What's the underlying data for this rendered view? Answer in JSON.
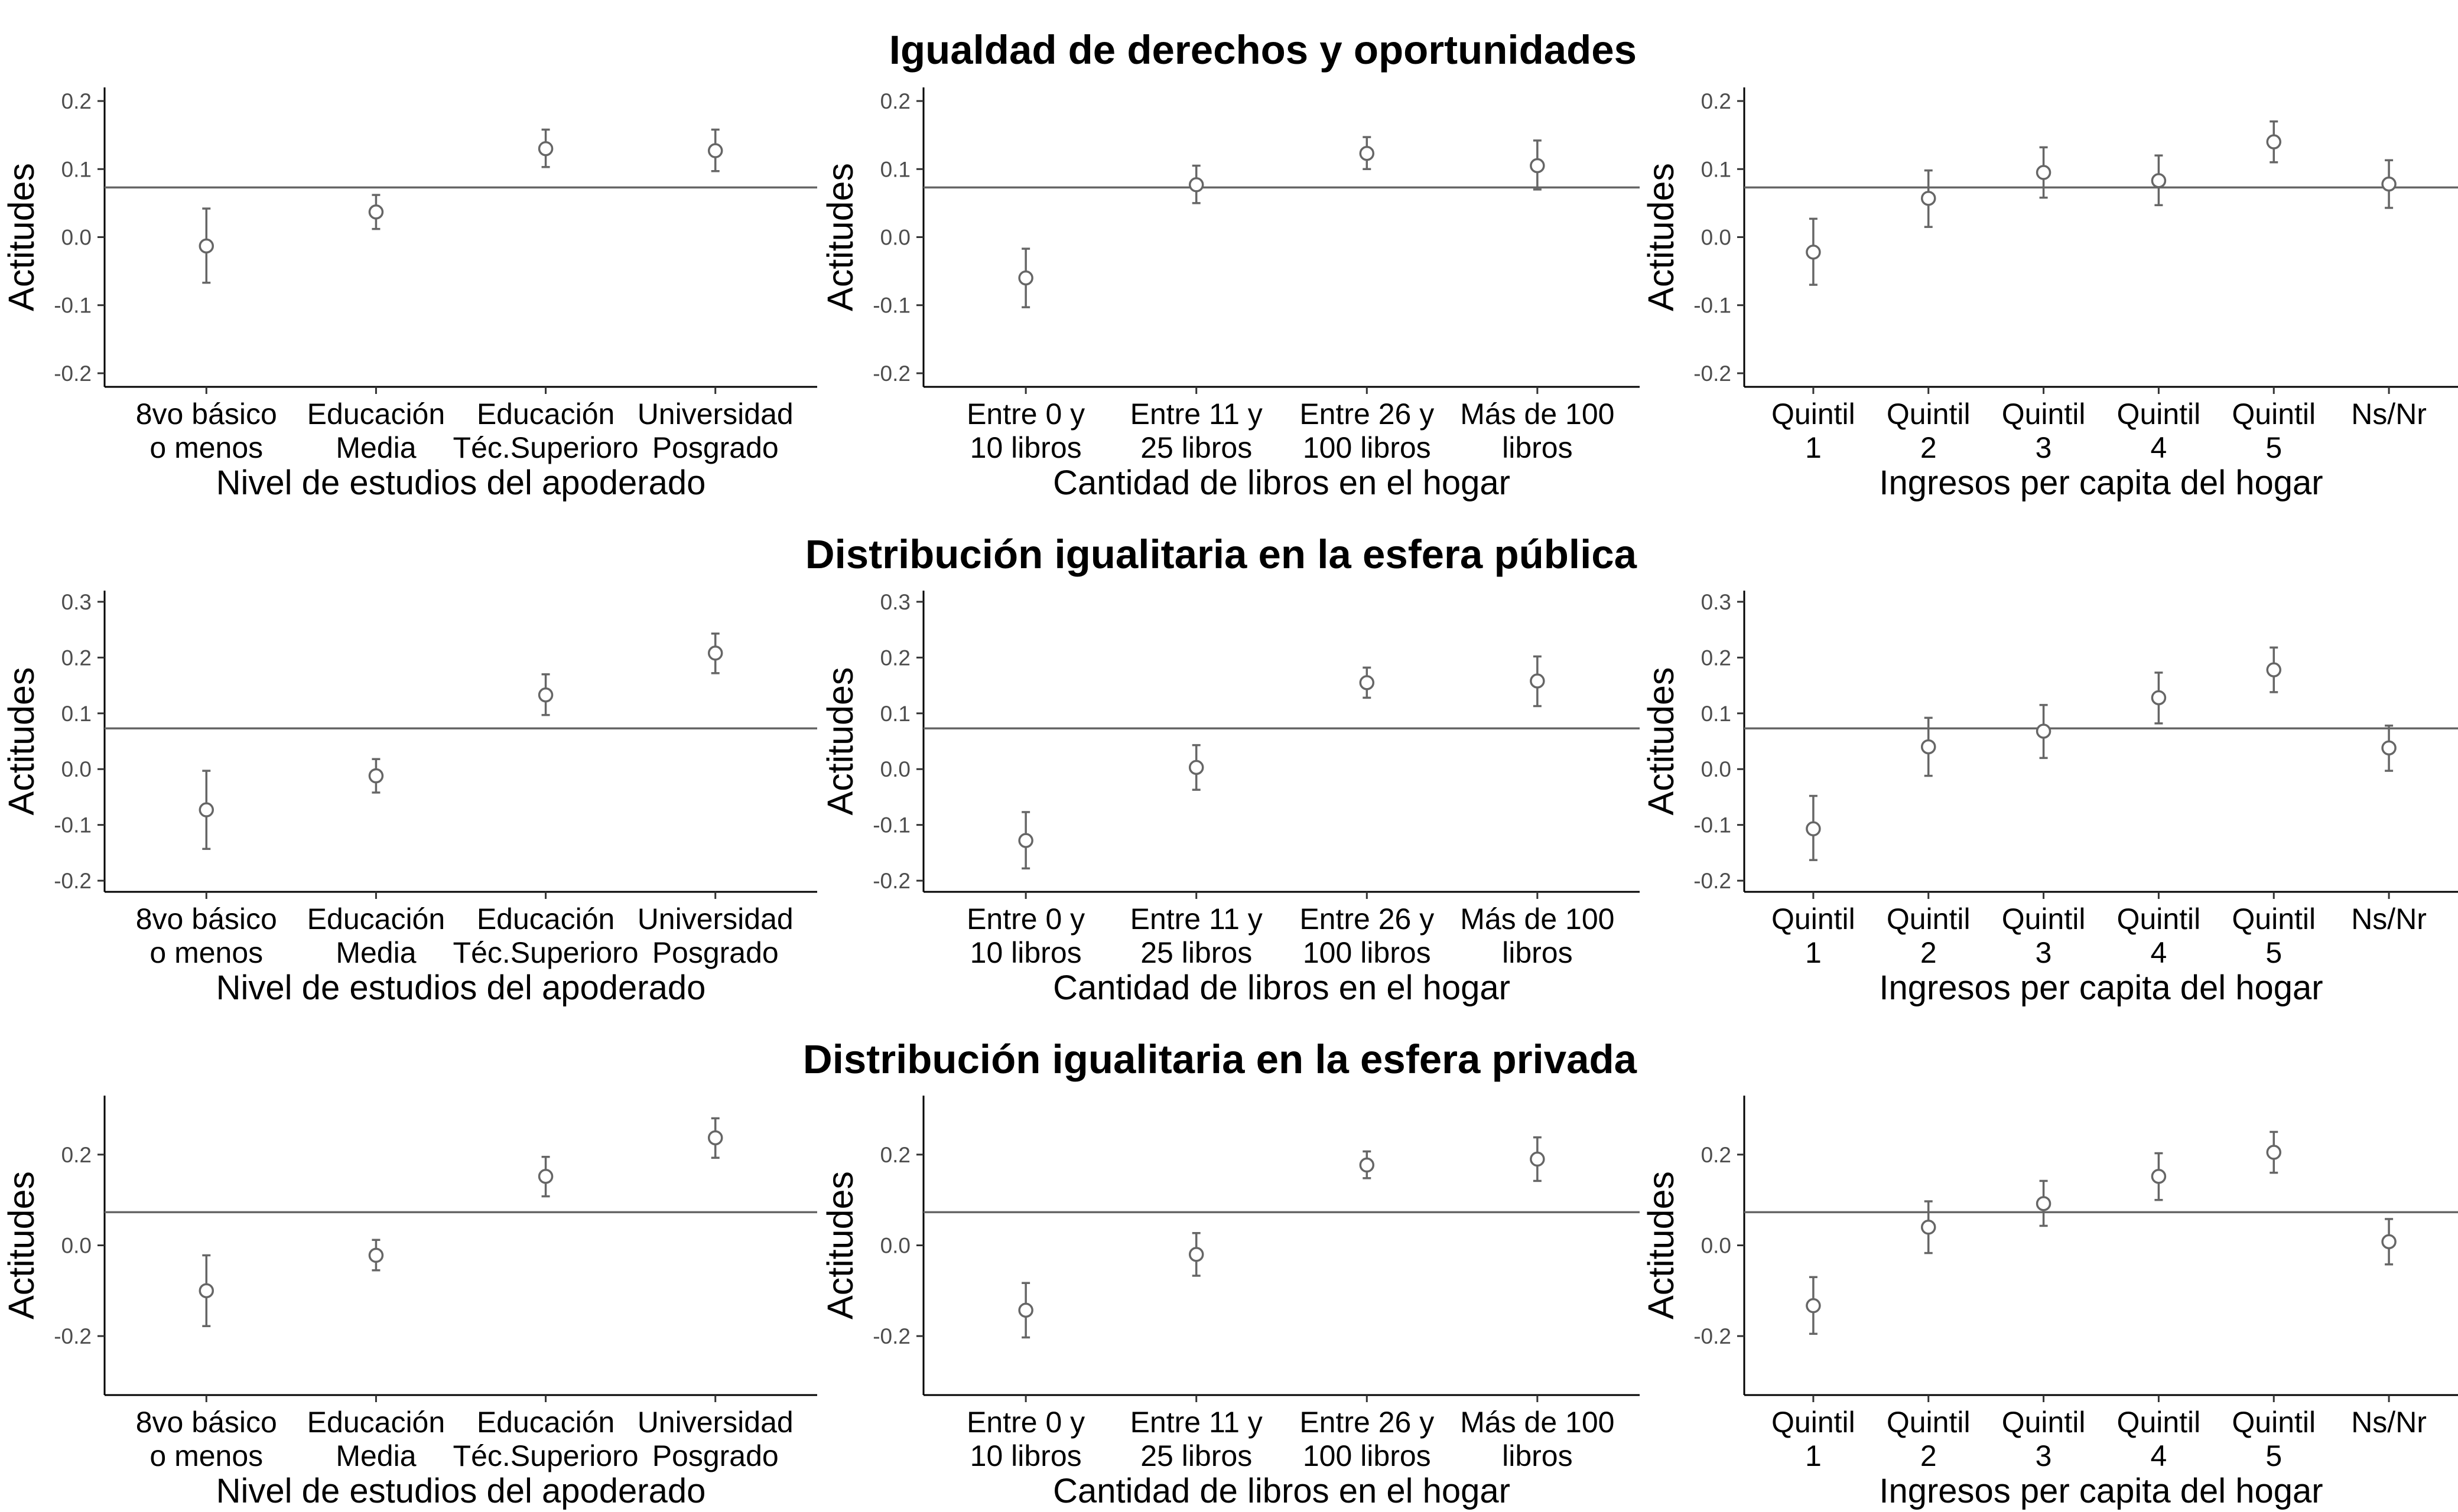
{
  "chart_data": {
    "type": "scatter",
    "style": {
      "point_color": "#666666",
      "point_fill": "#ffffff",
      "errorbar_color": "#666666",
      "refline_color": "#666666",
      "axis_color": "#000000",
      "grid": false
    },
    "row_titles": [
      "Igualdad de derechos y oportunidades",
      "Distribución igualitaria en la esfera pública",
      "Distribución igualitaria en la esfera privada"
    ],
    "panels": [
      {
        "row": 0,
        "col": 0,
        "ylabel": "Actitudes",
        "xlabel": "Nivel de estudios del apoderado",
        "categories": [
          [
            "8vo básico",
            "o menos"
          ],
          [
            "Educación",
            "Media"
          ],
          [
            "Educación",
            "Téc.Superioro"
          ],
          [
            "Universidad",
            "Posgrado"
          ]
        ],
        "ylim": [
          -0.22,
          0.22
        ],
        "yticks": [
          -0.2,
          -0.1,
          0.0,
          0.1,
          0.2
        ],
        "ytick_labels": [
          "-0.2",
          "-0.1",
          "0.0",
          "0.1",
          "0.2"
        ],
        "refline": 0.073,
        "values": [
          -0.013,
          0.037,
          0.13,
          0.127
        ],
        "lower": [
          -0.067,
          0.012,
          0.103,
          0.097
        ],
        "upper": [
          0.042,
          0.062,
          0.158,
          0.158
        ]
      },
      {
        "row": 0,
        "col": 1,
        "ylabel": "Actitudes",
        "xlabel": "Cantidad de libros en el hogar",
        "categories": [
          [
            "Entre 0 y",
            "10 libros"
          ],
          [
            "Entre 11 y",
            "25 libros"
          ],
          [
            "Entre 26 y",
            "100 libros"
          ],
          [
            "Más de 100",
            "libros"
          ]
        ],
        "ylim": [
          -0.22,
          0.22
        ],
        "yticks": [
          -0.2,
          -0.1,
          0.0,
          0.1,
          0.2
        ],
        "ytick_labels": [
          "-0.2",
          "-0.1",
          "0.0",
          "0.1",
          "0.2"
        ],
        "refline": 0.073,
        "values": [
          -0.06,
          0.077,
          0.123,
          0.105
        ],
        "lower": [
          -0.103,
          0.05,
          0.1,
          0.07
        ],
        "upper": [
          -0.017,
          0.105,
          0.147,
          0.142
        ]
      },
      {
        "row": 0,
        "col": 2,
        "ylabel": "Actitudes",
        "xlabel": "Ingresos per capita del hogar",
        "categories": [
          [
            "Quintil",
            "1"
          ],
          [
            "Quintil",
            "2"
          ],
          [
            "Quintil",
            "3"
          ],
          [
            "Quintil",
            "4"
          ],
          [
            "Quintil",
            "5"
          ],
          [
            "Ns/Nr"
          ]
        ],
        "ylim": [
          -0.22,
          0.22
        ],
        "yticks": [
          -0.2,
          -0.1,
          0.0,
          0.1,
          0.2
        ],
        "ytick_labels": [
          "-0.2",
          "-0.1",
          "0.0",
          "0.1",
          "0.2"
        ],
        "refline": 0.073,
        "values": [
          -0.022,
          0.057,
          0.095,
          0.083,
          0.14,
          0.078
        ],
        "lower": [
          -0.07,
          0.015,
          0.058,
          0.047,
          0.11,
          0.043
        ],
        "upper": [
          0.027,
          0.098,
          0.132,
          0.12,
          0.17,
          0.113
        ]
      },
      {
        "row": 1,
        "col": 0,
        "ylabel": "Actitudes",
        "xlabel": "Nivel de estudios del apoderado",
        "categories": [
          [
            "8vo básico",
            "o menos"
          ],
          [
            "Educación",
            "Media"
          ],
          [
            "Educación",
            "Téc.Superioro"
          ],
          [
            "Universidad",
            "Posgrado"
          ]
        ],
        "ylim": [
          -0.22,
          0.32
        ],
        "yticks": [
          -0.2,
          -0.1,
          0.0,
          0.1,
          0.2,
          0.3
        ],
        "ytick_labels": [
          "-0.2",
          "-0.1",
          "0.0",
          "0.1",
          "0.2",
          "0.3"
        ],
        "refline": 0.073,
        "values": [
          -0.073,
          -0.012,
          0.133,
          0.208
        ],
        "lower": [
          -0.143,
          -0.042,
          0.097,
          0.172
        ],
        "upper": [
          -0.003,
          0.018,
          0.17,
          0.243
        ]
      },
      {
        "row": 1,
        "col": 1,
        "ylabel": "Actitudes",
        "xlabel": "Cantidad de libros en el hogar",
        "categories": [
          [
            "Entre 0 y",
            "10 libros"
          ],
          [
            "Entre 11 y",
            "25 libros"
          ],
          [
            "Entre 26 y",
            "100 libros"
          ],
          [
            "Más de 100",
            "libros"
          ]
        ],
        "ylim": [
          -0.22,
          0.32
        ],
        "yticks": [
          -0.2,
          -0.1,
          0.0,
          0.1,
          0.2,
          0.3
        ],
        "ytick_labels": [
          "-0.2",
          "-0.1",
          "0.0",
          "0.1",
          "0.2",
          "0.3"
        ],
        "refline": 0.073,
        "values": [
          -0.128,
          0.003,
          0.155,
          0.158
        ],
        "lower": [
          -0.178,
          -0.037,
          0.128,
          0.113
        ],
        "upper": [
          -0.077,
          0.043,
          0.182,
          0.202
        ]
      },
      {
        "row": 1,
        "col": 2,
        "ylabel": "Actitudes",
        "xlabel": "Ingresos per capita del hogar",
        "categories": [
          [
            "Quintil",
            "1"
          ],
          [
            "Quintil",
            "2"
          ],
          [
            "Quintil",
            "3"
          ],
          [
            "Quintil",
            "4"
          ],
          [
            "Quintil",
            "5"
          ],
          [
            "Ns/Nr"
          ]
        ],
        "ylim": [
          -0.22,
          0.32
        ],
        "yticks": [
          -0.2,
          -0.1,
          0.0,
          0.1,
          0.2,
          0.3
        ],
        "ytick_labels": [
          "-0.2",
          "-0.1",
          "0.0",
          "0.1",
          "0.2",
          "0.3"
        ],
        "refline": 0.073,
        "values": [
          -0.107,
          0.04,
          0.068,
          0.128,
          0.178,
          0.038
        ],
        "lower": [
          -0.163,
          -0.012,
          0.02,
          0.082,
          0.138,
          -0.003
        ],
        "upper": [
          -0.048,
          0.092,
          0.115,
          0.173,
          0.218,
          0.078
        ]
      },
      {
        "row": 2,
        "col": 0,
        "ylabel": "Actitudes",
        "xlabel": "Nivel de estudios del apoderado",
        "categories": [
          [
            "8vo básico",
            "o menos"
          ],
          [
            "Educación",
            "Media"
          ],
          [
            "Educación",
            "Téc.Superioro"
          ],
          [
            "Universidad",
            "Posgrado"
          ]
        ],
        "ylim": [
          -0.33,
          0.33
        ],
        "yticks": [
          -0.2,
          0.0,
          0.2
        ],
        "ytick_labels": [
          "-0.2",
          "0.0",
          "0.2"
        ],
        "refline": 0.073,
        "values": [
          -0.1,
          -0.022,
          0.152,
          0.237
        ],
        "lower": [
          -0.178,
          -0.055,
          0.108,
          0.193
        ],
        "upper": [
          -0.022,
          0.012,
          0.195,
          0.28
        ]
      },
      {
        "row": 2,
        "col": 1,
        "ylabel": "Actitudes",
        "xlabel": "Cantidad de libros en el hogar",
        "categories": [
          [
            "Entre 0 y",
            "10 libros"
          ],
          [
            "Entre 11 y",
            "25 libros"
          ],
          [
            "Entre 26 y",
            "100 libros"
          ],
          [
            "Más de 100",
            "libros"
          ]
        ],
        "ylim": [
          -0.33,
          0.33
        ],
        "yticks": [
          -0.2,
          0.0,
          0.2
        ],
        "ytick_labels": [
          "-0.2",
          "0.0",
          "0.2"
        ],
        "refline": 0.073,
        "values": [
          -0.143,
          -0.02,
          0.177,
          0.19
        ],
        "lower": [
          -0.203,
          -0.067,
          0.148,
          0.142
        ],
        "upper": [
          -0.083,
          0.027,
          0.207,
          0.238
        ]
      },
      {
        "row": 2,
        "col": 2,
        "ylabel": "Actitudes",
        "xlabel": "Ingresos per capita del hogar",
        "categories": [
          [
            "Quintil",
            "1"
          ],
          [
            "Quintil",
            "2"
          ],
          [
            "Quintil",
            "3"
          ],
          [
            "Quintil",
            "4"
          ],
          [
            "Quintil",
            "5"
          ],
          [
            "Ns/Nr"
          ]
        ],
        "ylim": [
          -0.33,
          0.33
        ],
        "yticks": [
          -0.2,
          0.0,
          0.2
        ],
        "ytick_labels": [
          "-0.2",
          "0.0",
          "0.2"
        ],
        "refline": 0.073,
        "values": [
          -0.133,
          0.04,
          0.092,
          0.152,
          0.205,
          0.008
        ],
        "lower": [
          -0.195,
          -0.017,
          0.043,
          0.1,
          0.16,
          -0.042
        ],
        "upper": [
          -0.07,
          0.097,
          0.142,
          0.203,
          0.25,
          0.058
        ]
      }
    ]
  }
}
